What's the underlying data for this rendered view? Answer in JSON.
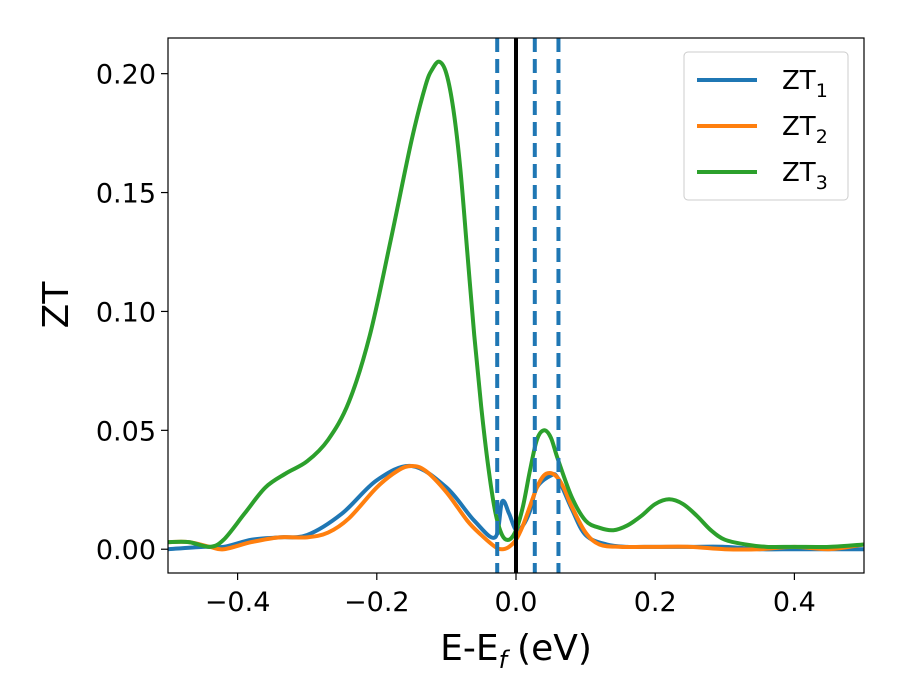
{
  "chart_data": {
    "type": "line",
    "xlabel": "E-E",
    "xlabel_sub": "f",
    "xlabel_unit": "(eV)",
    "ylabel": "ZT",
    "xlim": [
      -0.5,
      0.5
    ],
    "ylim": [
      -0.01,
      0.215
    ],
    "x_ticks": [
      -0.4,
      -0.2,
      0.0,
      0.2,
      0.4
    ],
    "x_tick_labels": [
      "−0.4",
      "−0.2",
      "0.0",
      "0.2",
      "0.4"
    ],
    "y_ticks": [
      0.0,
      0.05,
      0.1,
      0.15,
      0.2
    ],
    "y_tick_labels": [
      "0.00",
      "0.05",
      "0.10",
      "0.15",
      "0.20"
    ],
    "grid": false,
    "legend_position": "top-right",
    "vertical_lines": [
      {
        "x": -0.027,
        "style": "dashed",
        "color": "#1f77b4"
      },
      {
        "x": 0.0,
        "style": "solid",
        "color": "#000000"
      },
      {
        "x": 0.027,
        "style": "dashed",
        "color": "#1f77b4"
      },
      {
        "x": 0.061,
        "style": "dashed",
        "color": "#1f77b4"
      }
    ],
    "series": [
      {
        "name": "ZT",
        "name_sub": "1",
        "color": "#1f77b4",
        "x": [
          -0.5,
          -0.45,
          -0.42,
          -0.38,
          -0.34,
          -0.3,
          -0.25,
          -0.2,
          -0.15,
          -0.1,
          -0.06,
          -0.03,
          -0.02,
          -0.01,
          0.0,
          0.01,
          0.02,
          0.03,
          0.05,
          0.06,
          0.08,
          0.1,
          0.13,
          0.16,
          0.2,
          0.25,
          0.3,
          0.35,
          0.4,
          0.45,
          0.5
        ],
        "y": [
          0.0,
          0.001,
          0.001,
          0.004,
          0.005,
          0.006,
          0.015,
          0.029,
          0.035,
          0.026,
          0.012,
          0.005,
          0.02,
          0.015,
          0.008,
          0.01,
          0.016,
          0.026,
          0.031,
          0.03,
          0.017,
          0.006,
          0.002,
          0.001,
          0.001,
          0.001,
          0.001,
          0.0,
          0.0,
          0.0,
          0.0
        ]
      },
      {
        "name": "ZT",
        "name_sub": "2",
        "color": "#ff7f0e",
        "x": [
          -0.5,
          -0.47,
          -0.44,
          -0.42,
          -0.38,
          -0.34,
          -0.3,
          -0.27,
          -0.24,
          -0.2,
          -0.17,
          -0.15,
          -0.13,
          -0.1,
          -0.07,
          -0.05,
          -0.03,
          -0.02,
          -0.01,
          0.0,
          0.01,
          0.02,
          0.03,
          0.04,
          0.05,
          0.06,
          0.07,
          0.08,
          0.1,
          0.12,
          0.15,
          0.2,
          0.25,
          0.3,
          0.35,
          0.4,
          0.45,
          0.5
        ],
        "y": [
          0.003,
          0.003,
          0.001,
          0.0,
          0.003,
          0.005,
          0.005,
          0.007,
          0.013,
          0.026,
          0.033,
          0.035,
          0.033,
          0.024,
          0.012,
          0.006,
          0.001,
          0.0,
          0.001,
          0.004,
          0.01,
          0.018,
          0.026,
          0.031,
          0.032,
          0.03,
          0.025,
          0.018,
          0.007,
          0.002,
          0.001,
          0.001,
          0.001,
          0.0,
          0.0,
          0.001,
          0.0,
          0.002
        ]
      },
      {
        "name": "ZT",
        "name_sub": "3",
        "color": "#2ca02c",
        "x": [
          -0.5,
          -0.47,
          -0.44,
          -0.42,
          -0.39,
          -0.36,
          -0.33,
          -0.3,
          -0.27,
          -0.24,
          -0.21,
          -0.18,
          -0.15,
          -0.13,
          -0.12,
          -0.11,
          -0.1,
          -0.09,
          -0.08,
          -0.07,
          -0.06,
          -0.05,
          -0.04,
          -0.03,
          -0.02,
          -0.01,
          0.0,
          0.01,
          0.02,
          0.03,
          0.04,
          0.05,
          0.06,
          0.08,
          0.1,
          0.12,
          0.14,
          0.16,
          0.18,
          0.2,
          0.22,
          0.24,
          0.26,
          0.28,
          0.3,
          0.33,
          0.36,
          0.4,
          0.45,
          0.5
        ],
        "y": [
          0.003,
          0.003,
          0.001,
          0.004,
          0.015,
          0.026,
          0.032,
          0.037,
          0.046,
          0.062,
          0.09,
          0.13,
          0.172,
          0.195,
          0.202,
          0.205,
          0.2,
          0.185,
          0.16,
          0.125,
          0.09,
          0.06,
          0.035,
          0.016,
          0.006,
          0.004,
          0.008,
          0.018,
          0.033,
          0.046,
          0.05,
          0.047,
          0.038,
          0.022,
          0.012,
          0.009,
          0.008,
          0.01,
          0.014,
          0.019,
          0.021,
          0.019,
          0.014,
          0.008,
          0.004,
          0.002,
          0.001,
          0.001,
          0.001,
          0.002
        ]
      }
    ]
  }
}
